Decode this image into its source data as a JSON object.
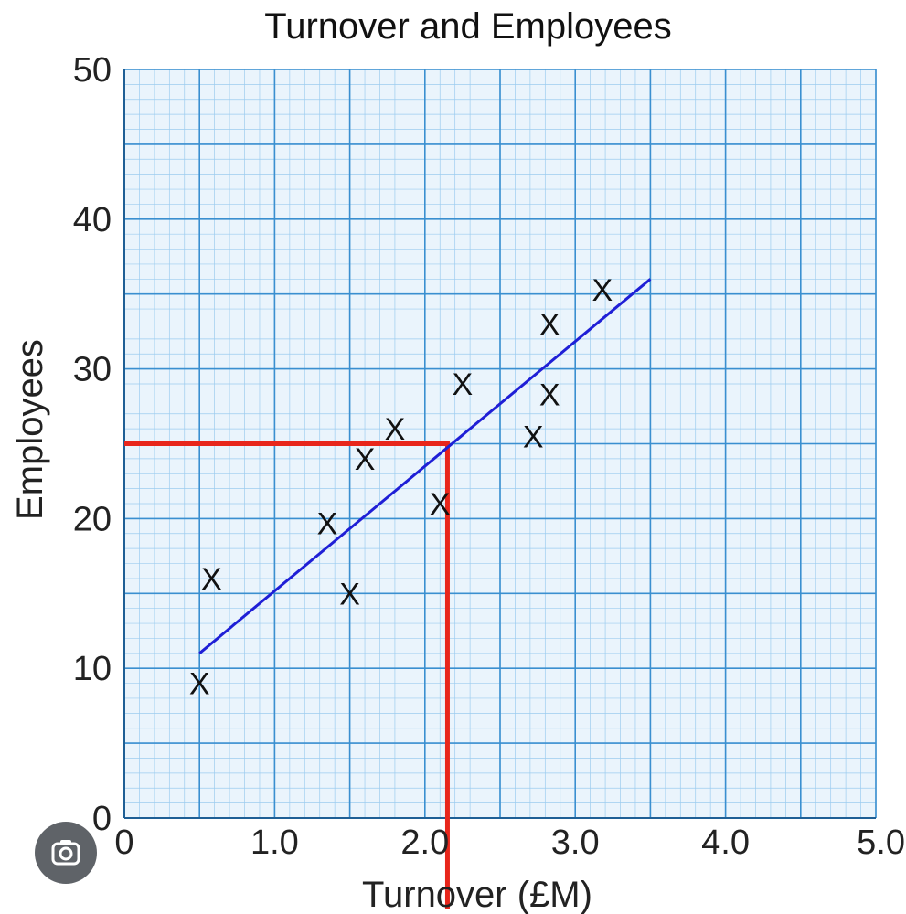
{
  "chart_data": {
    "type": "scatter",
    "title": "Turnover and Employees",
    "xlabel": "Turnover (£M)",
    "ylabel": "Employees",
    "xlim": [
      0,
      5
    ],
    "ylim": [
      0,
      50
    ],
    "x_ticks": [
      "0",
      "1.0",
      "2.0",
      "3.0",
      "4.0",
      "5.0"
    ],
    "y_ticks": [
      "0",
      "10",
      "20",
      "30",
      "40",
      "50"
    ],
    "grid": true,
    "points": [
      {
        "x": 0.5,
        "y": 9
      },
      {
        "x": 0.58,
        "y": 16
      },
      {
        "x": 1.35,
        "y": 19.7
      },
      {
        "x": 1.5,
        "y": 15
      },
      {
        "x": 1.6,
        "y": 24
      },
      {
        "x": 1.8,
        "y": 26
      },
      {
        "x": 2.1,
        "y": 21
      },
      {
        "x": 2.25,
        "y": 29
      },
      {
        "x": 2.72,
        "y": 25.5
      },
      {
        "x": 2.83,
        "y": 33
      },
      {
        "x": 2.83,
        "y": 28.3
      },
      {
        "x": 3.18,
        "y": 35.3
      }
    ],
    "marker_symbol": "X",
    "line_of_best_fit": {
      "x": [
        0.5,
        3.5
      ],
      "y": [
        11,
        36
      ],
      "color": "#1f1fd6"
    },
    "reading_lines": {
      "x": 2.15,
      "y": 25,
      "color": "#e8261b"
    },
    "colors": {
      "grid_major": "#3a8fd0",
      "grid_minor": "#9cccef",
      "background": "#eaf4fc"
    }
  },
  "ui": {
    "lens_icon": "google-lens-icon"
  }
}
